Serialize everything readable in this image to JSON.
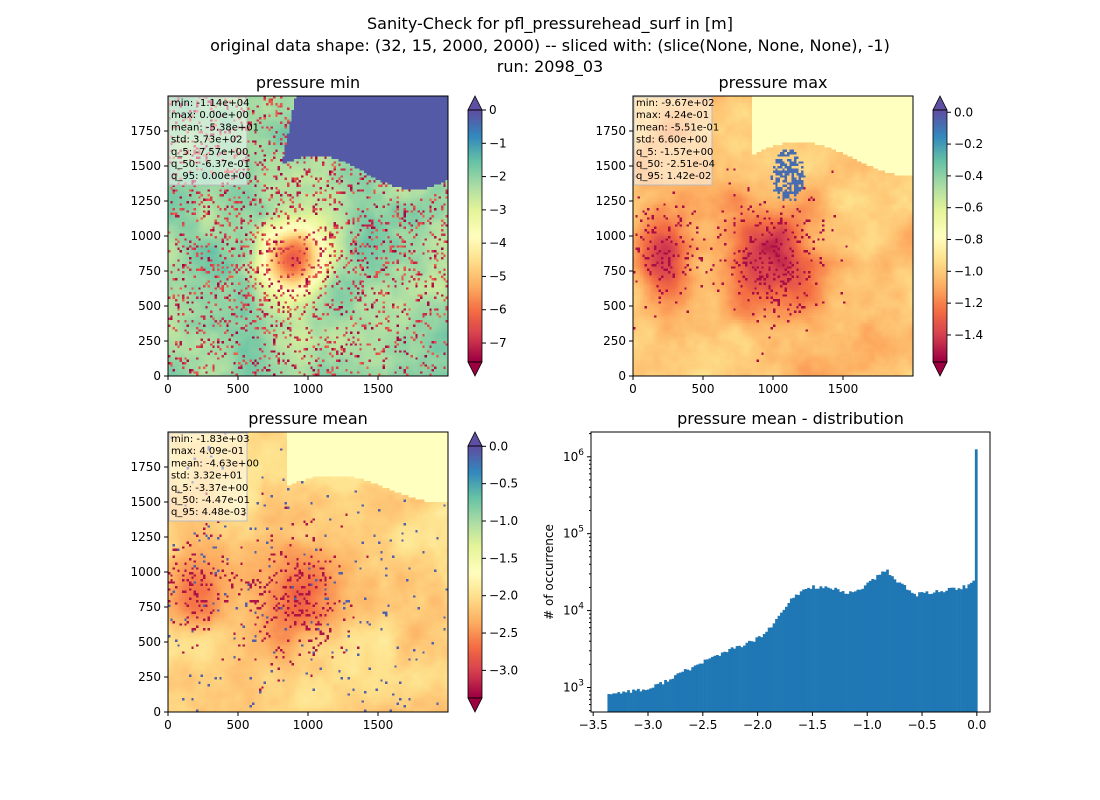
{
  "figure": {
    "title_lines": [
      "Sanity-Check for pfl_pressurehead_surf in [m]",
      "original data shape: (32, 15, 2000, 2000) -- sliced with: (slice(None, None, None), -1)",
      "run: 2098_03"
    ]
  },
  "chart_data": [
    {
      "type": "heatmap",
      "title": "pressure min",
      "colormap": "Spectral",
      "colormap_colors": [
        "#9e0142",
        "#d53e4f",
        "#f46d43",
        "#fdae61",
        "#fee08b",
        "#ffffbf",
        "#e6f598",
        "#abdda4",
        "#66c2a5",
        "#3288bd",
        "#5e4fa2"
      ],
      "x_ticks": [
        0,
        500,
        1000,
        1500
      ],
      "y_ticks": [
        0,
        250,
        500,
        750,
        1000,
        1250,
        1500,
        1750
      ],
      "xlim": [
        0,
        2000
      ],
      "ylim": [
        0,
        2000
      ],
      "colorbar": {
        "vmin": -7.57,
        "vmax": 0.0,
        "ticks": [
          -7,
          -6,
          -5,
          -4,
          -3,
          -2,
          -1,
          0
        ],
        "tick_labels": [
          "−7",
          "−6",
          "−5",
          "−4",
          "−3",
          "−2",
          "−1",
          "0"
        ],
        "extend": "both"
      },
      "stats": [
        "min: -1.14e+04",
        "max: 0.00e+00",
        "mean: -5.38e+01",
        "std: 3.73e+02",
        "q_5: -7.57e+00",
        "q_50: -6.37e-01",
        "q_95: 0.00e+00"
      ]
    },
    {
      "type": "heatmap",
      "title": "pressure max",
      "colormap": "Spectral",
      "colormap_colors": [
        "#9e0142",
        "#d53e4f",
        "#f46d43",
        "#fdae61",
        "#fee08b",
        "#ffffbf",
        "#e6f598",
        "#abdda4",
        "#66c2a5",
        "#3288bd",
        "#5e4fa2"
      ],
      "x_ticks": [
        0,
        500,
        1000,
        1500
      ],
      "y_ticks": [
        0,
        250,
        500,
        750,
        1000,
        1250,
        1500,
        1750
      ],
      "xlim": [
        0,
        2000
      ],
      "ylim": [
        0,
        2000
      ],
      "colorbar": {
        "vmin": -1.57,
        "vmax": 0.0142,
        "ticks": [
          -1.4,
          -1.2,
          -1.0,
          -0.8,
          -0.6,
          -0.4,
          -0.2,
          0.0
        ],
        "tick_labels": [
          "−1.4",
          "−1.2",
          "−1.0",
          "−0.8",
          "−0.6",
          "−0.4",
          "−0.2",
          "0.0"
        ],
        "extend": "both"
      },
      "stats": [
        "min: -9.67e+02",
        "max: 4.24e-01",
        "mean: -5.51e-01",
        "std: 6.60e+00",
        "q_5: -1.57e+00",
        "q_50: -2.51e-04",
        "q_95: 1.42e-02"
      ]
    },
    {
      "type": "heatmap",
      "title": "pressure mean",
      "colormap": "Spectral",
      "colormap_colors": [
        "#9e0142",
        "#d53e4f",
        "#f46d43",
        "#fdae61",
        "#fee08b",
        "#ffffbf",
        "#e6f598",
        "#abdda4",
        "#66c2a5",
        "#3288bd",
        "#5e4fa2"
      ],
      "x_ticks": [
        0,
        500,
        1000,
        1500
      ],
      "y_ticks": [
        0,
        250,
        500,
        750,
        1000,
        1250,
        1500,
        1750
      ],
      "xlim": [
        0,
        2000
      ],
      "ylim": [
        0,
        2000
      ],
      "colorbar": {
        "vmin": -3.37,
        "vmax": 0.00448,
        "ticks": [
          -3.0,
          -2.5,
          -2.0,
          -1.5,
          -1.0,
          -0.5,
          0.0
        ],
        "tick_labels": [
          "−3.0",
          "−2.5",
          "−2.0",
          "−1.5",
          "−1.0",
          "−0.5",
          "0.0"
        ],
        "extend": "both"
      },
      "stats": [
        "min: -1.83e+03",
        "max: 4.09e-01",
        "mean: -4.63e+00",
        "std: 3.32e+01",
        "q_5: -3.37e+00",
        "q_50: -4.47e-01",
        "q_95: 4.48e-03"
      ]
    },
    {
      "type": "bar",
      "title": "pressure mean - distribution",
      "ylabel": "# of occurrence",
      "xlabel": "",
      "yscale": "log",
      "color": "#1f77b4",
      "xlim": [
        -3.52,
        0.12
      ],
      "ylim": [
        480,
        2100000
      ],
      "x_ticks": [
        -3.5,
        -3.0,
        -2.5,
        -2.0,
        -1.5,
        -1.0,
        -0.5,
        0.0
      ],
      "x_tick_labels": [
        "−3.5",
        "−3.0",
        "−2.5",
        "−2.0",
        "−1.5",
        "−1.0",
        "−0.5",
        "0.0"
      ],
      "y_ticks": [
        1000,
        10000,
        100000,
        1000000
      ],
      "y_tick_bases": [
        "10",
        "10",
        "10",
        "10"
      ],
      "y_tick_exps": [
        "3",
        "4",
        "5",
        "6"
      ],
      "bins": [
        -3.37,
        0.00448
      ],
      "bin_count": 150,
      "anchors": [
        [
          -3.37,
          850
        ],
        [
          -3.3,
          830
        ],
        [
          -3.2,
          900
        ],
        [
          -3.1,
          920
        ],
        [
          -3.0,
          940
        ],
        [
          -2.9,
          1100
        ],
        [
          -2.8,
          1300
        ],
        [
          -2.7,
          1550
        ],
        [
          -2.6,
          1800
        ],
        [
          -2.5,
          2150
        ],
        [
          -2.4,
          2500
        ],
        [
          -2.3,
          2900
        ],
        [
          -2.2,
          3300
        ],
        [
          -2.1,
          3700
        ],
        [
          -2.0,
          4300
        ],
        [
          -1.9,
          5600
        ],
        [
          -1.8,
          8500
        ],
        [
          -1.7,
          13500
        ],
        [
          -1.6,
          18000
        ],
        [
          -1.5,
          20500
        ],
        [
          -1.4,
          20000
        ],
        [
          -1.3,
          19000
        ],
        [
          -1.2,
          16500
        ],
        [
          -1.1,
          18000
        ],
        [
          -1.0,
          22000
        ],
        [
          -0.9,
          28000
        ],
        [
          -0.82,
          34000
        ],
        [
          -0.75,
          25000
        ],
        [
          -0.65,
          21000
        ],
        [
          -0.58,
          15500
        ],
        [
          -0.5,
          16800
        ],
        [
          -0.4,
          17500
        ],
        [
          -0.3,
          18200
        ],
        [
          -0.2,
          19200
        ],
        [
          -0.1,
          20500
        ],
        [
          -0.03,
          22500
        ],
        [
          0.0,
          1250000
        ]
      ]
    }
  ]
}
